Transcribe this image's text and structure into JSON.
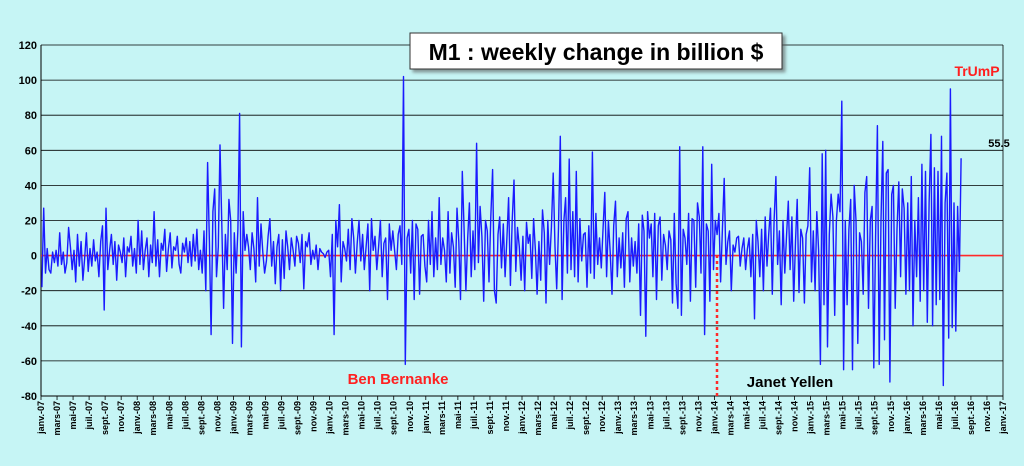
{
  "chart_data": {
    "type": "line",
    "title": "M1 : weekly change in billion $",
    "xlabel": "",
    "ylabel": "",
    "ylim": [
      -80,
      120
    ],
    "yticks": [
      -80,
      -60,
      -40,
      -20,
      0,
      20,
      40,
      60,
      80,
      100,
      120
    ],
    "grid": "horizontal",
    "colors": {
      "background": "#c6f5f5",
      "series": "#1a1aff",
      "zero_line": "#ff2a2a",
      "grid": "#000000",
      "annotation_red": "#ff2020",
      "annotation_black": "#000000"
    },
    "xtick_labels": [
      "janv.-07",
      "mars-07",
      "mai-07",
      "juil.-07",
      "sept.-07",
      "nov.-07",
      "janv.-08",
      "mars-08",
      "mai-08",
      "juil.-08",
      "sept.-08",
      "nov.-08",
      "janv.-09",
      "mars-09",
      "mai-09",
      "juil.-09",
      "sept.-09",
      "nov.-09",
      "janv.-10",
      "mars-10",
      "mai-10",
      "juil.-10",
      "sept.-10",
      "nov.-10",
      "janv.-11",
      "mars-11",
      "mai-11",
      "juil.-11",
      "sept.-11",
      "nov.-11",
      "janv.-12",
      "mars-12",
      "mai-12",
      "juil.-12",
      "sept.-12",
      "nov.-12",
      "janv.-13",
      "mars-13",
      "mai-13",
      "juil.-13",
      "sept.-13",
      "nov.-13",
      "janv.-14",
      "mars-14",
      "mai-14",
      "juil.-14",
      "sept.-14",
      "nov.-14",
      "janv.-15",
      "mars-15",
      "mai-15",
      "juil.-15",
      "sept.-15",
      "nov.-15",
      "janv.-16",
      "mars-16",
      "mai-16",
      "juil.-16",
      "sept.-16",
      "nov.-16",
      "janv.-17"
    ],
    "series": [
      {
        "name": "M1 weekly change",
        "values_by_period": [
          [
            -18,
            27,
            -10,
            4,
            -8,
            -10,
            2,
            -4,
            3
          ],
          [
            -6,
            13,
            -5,
            2,
            -10,
            -4,
            16,
            5,
            -8
          ],
          [
            3,
            -15,
            12,
            -6,
            8,
            -14,
            -2,
            13,
            -9
          ],
          [
            4,
            -6,
            9,
            -3,
            2,
            -12,
            8,
            17,
            -31
          ],
          [
            27,
            -8,
            3,
            12,
            -5,
            8,
            -14,
            6,
            2
          ],
          [
            -4,
            10,
            -12,
            5,
            2,
            11,
            -6,
            4,
            -10
          ],
          [
            20,
            -5,
            14,
            -8,
            3,
            10,
            -12,
            6,
            -4
          ],
          [
            25,
            -6,
            9,
            -12,
            7,
            3,
            15,
            -9,
            4
          ],
          [
            13,
            -7,
            5,
            3,
            11,
            -5,
            -10,
            7,
            2
          ],
          [
            10,
            -4,
            8,
            -6,
            12,
            -3,
            15,
            -8,
            3
          ],
          [
            -10,
            14,
            -20,
            53,
            8,
            -45,
            25,
            38,
            -12
          ],
          [
            5,
            63,
            18,
            -30,
            12,
            -8,
            32,
            20,
            -50
          ],
          [
            13,
            -10,
            15,
            81,
            -52,
            25,
            3,
            12,
            5
          ],
          [
            -8,
            13,
            4,
            -15,
            33,
            -6,
            18,
            2,
            -10
          ],
          [
            -3,
            11,
            21,
            -6,
            8,
            -16,
            5,
            12,
            -20
          ],
          [
            9,
            -13,
            14,
            5,
            -8,
            10,
            3,
            -6,
            11
          ],
          [
            7,
            -4,
            12,
            -19,
            8,
            5,
            13,
            -5,
            3
          ],
          [
            -2,
            6,
            -8,
            4,
            2,
            1,
            -1,
            2,
            3
          ],
          [
            -12,
            12,
            -45,
            20,
            5,
            29,
            -15,
            8,
            4
          ],
          [
            -3,
            15,
            -8,
            21,
            10,
            -10,
            7,
            20,
            -3
          ],
          [
            12,
            -8,
            5,
            18,
            -20,
            21,
            3,
            11,
            -8
          ],
          [
            5,
            20,
            -12,
            7,
            10,
            -25,
            18,
            3,
            14
          ],
          [
            3,
            -8,
            12,
            17,
            -5,
            102,
            -62,
            10,
            15
          ],
          [
            -10,
            20,
            -25,
            18,
            15,
            -22,
            11,
            12,
            -6
          ],
          [
            -15,
            20,
            -5,
            25,
            -12,
            10,
            -8,
            33,
            -5
          ],
          [
            10,
            3,
            -15,
            25,
            -10,
            13,
            5,
            -18,
            27
          ],
          [
            8,
            -25,
            48,
            15,
            -20,
            10,
            30,
            -12,
            14
          ],
          [
            -8,
            64,
            -4,
            28,
            11,
            -26,
            20,
            14,
            -15
          ],
          [
            22,
            49,
            -20,
            -27,
            12,
            22,
            -7,
            18,
            -12
          ],
          [
            10,
            33,
            -17,
            20,
            43,
            -9,
            16,
            5,
            -14
          ],
          [
            11,
            -20,
            19,
            7,
            12,
            -13,
            21,
            3,
            -22
          ],
          [
            8,
            -14,
            26,
            13,
            -27,
            20,
            -5,
            16,
            47
          ],
          [
            5,
            -19,
            16,
            68,
            -25,
            20,
            33,
            -10,
            55
          ],
          [
            -8,
            25,
            -12,
            48,
            -15,
            21,
            -3,
            12,
            13
          ],
          [
            -18,
            17,
            -10,
            59,
            -13,
            24,
            -5,
            10,
            -7
          ],
          [
            16,
            36,
            -12,
            20,
            2,
            -22,
            17,
            31,
            -12
          ],
          [
            10,
            -7,
            13,
            -18,
            21,
            25,
            -15,
            10,
            -6
          ],
          [
            8,
            -10,
            18,
            -34,
            23,
            14,
            -46,
            25,
            10
          ],
          [
            18,
            -12,
            24,
            -25,
            17,
            22,
            -14,
            12,
            6
          ],
          [
            -8,
            14,
            9,
            -27,
            24,
            -16,
            -30,
            62,
            -34
          ],
          [
            15,
            10,
            -5,
            24,
            -26,
            21,
            20,
            -18,
            30
          ],
          [
            22,
            -10,
            62,
            -45,
            18,
            14,
            -26,
            52,
            -8
          ],
          [
            20,
            12,
            24,
            -15,
            15,
            44,
            -5,
            8,
            14
          ],
          [
            -20,
            6,
            2,
            10,
            11,
            -6,
            4,
            10,
            -8
          ],
          [
            4,
            10,
            -12,
            12,
            -36,
            20,
            8,
            -12,
            15
          ],
          [
            -20,
            22,
            -6,
            12,
            27,
            -22,
            20,
            45,
            -5
          ],
          [
            14,
            -28,
            20,
            -10,
            12,
            31,
            -8,
            22,
            -26
          ],
          [
            8,
            32,
            -21,
            15,
            10,
            -27,
            12,
            17,
            50
          ],
          [
            -15,
            14,
            -20,
            25,
            3,
            -62,
            58,
            -28,
            60
          ],
          [
            -52,
            12,
            35,
            22,
            -34,
            20,
            35,
            25,
            88
          ],
          [
            -65,
            20,
            -28,
            15,
            32,
            -65,
            40,
            20,
            -50
          ],
          [
            13,
            8,
            -22,
            36,
            45,
            -30,
            20,
            28,
            -64
          ],
          [
            11,
            74,
            -62,
            20,
            65,
            -48,
            47,
            49,
            -72
          ],
          [
            35,
            40,
            -30,
            15,
            42,
            -12,
            38,
            27,
            -22
          ],
          [
            30,
            -20,
            45,
            -40,
            20,
            -12,
            33,
            -26,
            52
          ],
          [
            -20,
            48,
            -38,
            30,
            69,
            -40,
            50,
            -28,
            48
          ],
          [
            -25,
            68,
            -74,
            30,
            47,
            -47,
            95,
            -41,
            30
          ],
          [
            -43,
            28,
            -9,
            55.5
          ]
        ]
      }
    ],
    "annotations": [
      {
        "text": "Ben Bernanke"
      },
      {
        "text": "Janet Yellen"
      },
      {
        "text": "TrUmP"
      },
      {
        "text": "55.5"
      }
    ]
  }
}
